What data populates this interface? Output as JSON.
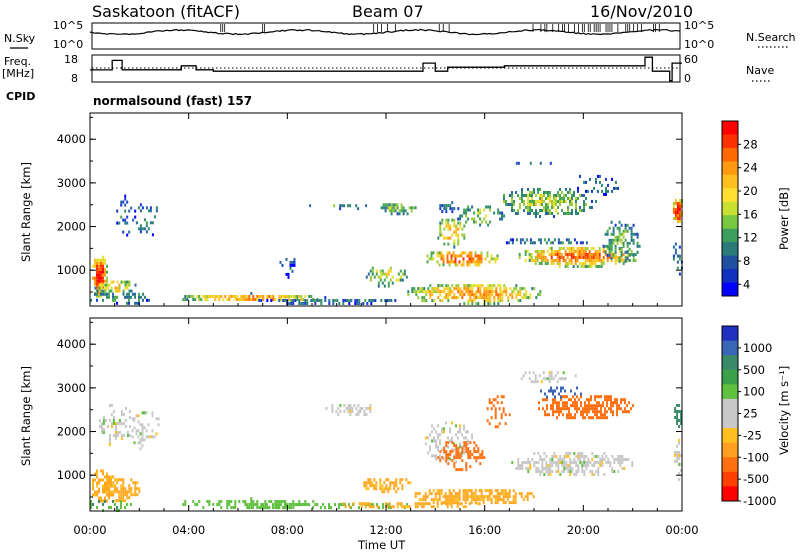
{
  "header": {
    "station": "Saskatoon (fitACF)",
    "beam": "Beam 07",
    "date": "16/Nov/2010"
  },
  "top_panels": {
    "nsky_label": "N.Sky",
    "nsky_ticks": [
      "10^5",
      "10^0"
    ],
    "nsearch_label": "N.Search",
    "nsearch_ticks": [
      "10^5",
      "10^0"
    ],
    "freq_label_1": "Freq.",
    "freq_label_2": "[MHz]",
    "freq_ticks": [
      "18",
      "8"
    ],
    "nave_label": "Nave",
    "nave_ticks": [
      "60",
      "0"
    ],
    "cpid_label": "CPID",
    "cpid_value": "normalsound (fast) 157"
  },
  "power_panel": {
    "ylabel": "Slant Range [km]",
    "yticks": [
      "4000",
      "3000",
      "2000",
      "1000"
    ],
    "colorbar_label": "Power [dB]",
    "colorbar_ticks": [
      "28",
      "24",
      "20",
      "16",
      "12",
      "8",
      "4"
    ],
    "colorbar_colors": [
      "#ff0000",
      "#ff3000",
      "#ff6a00",
      "#ff9a10",
      "#ffc020",
      "#ffe030",
      "#c8e030",
      "#7ac840",
      "#3e9e5e",
      "#2a7a7a",
      "#2050a0",
      "#1030c0",
      "#0000ff"
    ]
  },
  "velocity_panel": {
    "ylabel": "Slant Range [km]",
    "yticks": [
      "4000",
      "3000",
      "2000",
      "1000"
    ],
    "colorbar_label": "Velocity [m s⁻¹]",
    "colorbar_ticks": [
      "1000",
      "500",
      "100",
      "25",
      "-25",
      "-100",
      "-500",
      "-1000"
    ],
    "colorbar_colors": [
      "#2030c0",
      "#3a66b8",
      "#3a8a6a",
      "#3aa04a",
      "#60c040",
      "#c8c8c8",
      "#c8c8c8",
      "#ffc020",
      "#ffa020",
      "#ff7010",
      "#ff4000",
      "#ff0000"
    ]
  },
  "time_axis": {
    "xlabel": "Time UT",
    "ticks": [
      "00:00",
      "04:00",
      "08:00",
      "12:00",
      "16:00",
      "20:00",
      "00:00"
    ]
  },
  "chart_data": [
    {
      "type": "heatmap",
      "name": "power",
      "x_range_hours": [
        0,
        24
      ],
      "ylim": [
        180,
        4600
      ],
      "clim": [
        0,
        30
      ],
      "blobs": [
        {
          "t": 0.35,
          "r": 900,
          "dt": 0.35,
          "dr": 500,
          "v": 28,
          "dens": 0.95
        },
        {
          "t": 1.0,
          "r": 650,
          "dt": 0.9,
          "dr": 180,
          "v": 18,
          "dens": 0.7
        },
        {
          "t": 1.4,
          "r": 2300,
          "dt": 0.5,
          "dr": 500,
          "v": 8,
          "dens": 0.25
        },
        {
          "t": 2.3,
          "r": 2200,
          "dt": 0.6,
          "dr": 400,
          "v": 8,
          "dens": 0.25
        },
        {
          "t": 1.2,
          "r": 400,
          "dt": 1.4,
          "dr": 150,
          "v": 10,
          "dens": 0.45
        },
        {
          "t": 6.5,
          "r": 400,
          "dt": 3.0,
          "dr": 100,
          "v": 22,
          "dens": 0.85
        },
        {
          "t": 9.5,
          "r": 330,
          "dt": 3.0,
          "dr": 80,
          "v": 8,
          "dens": 0.7
        },
        {
          "t": 8.0,
          "r": 1100,
          "dt": 0.4,
          "dr": 250,
          "v": 6,
          "dens": 0.25
        },
        {
          "t": 12.0,
          "r": 900,
          "dt": 0.9,
          "dr": 250,
          "v": 16,
          "dens": 0.5
        },
        {
          "t": 10.0,
          "r": 2500,
          "dt": 1.2,
          "dr": 80,
          "v": 10,
          "dens": 0.35
        },
        {
          "t": 12.5,
          "r": 2450,
          "dt": 0.8,
          "dr": 150,
          "v": 14,
          "dens": 0.7
        },
        {
          "t": 15.5,
          "r": 500,
          "dt": 2.8,
          "dr": 250,
          "v": 22,
          "dens": 0.75
        },
        {
          "t": 15.0,
          "r": 1300,
          "dt": 1.6,
          "dr": 200,
          "v": 24,
          "dens": 0.75
        },
        {
          "t": 14.6,
          "r": 1900,
          "dt": 0.6,
          "dr": 350,
          "v": 20,
          "dens": 0.65
        },
        {
          "t": 15.8,
          "r": 2300,
          "dt": 1.0,
          "dr": 250,
          "v": 14,
          "dens": 0.5
        },
        {
          "t": 14.5,
          "r": 2500,
          "dt": 0.5,
          "dr": 150,
          "v": 8,
          "dens": 0.45
        },
        {
          "t": 18.5,
          "r": 2600,
          "dt": 2.0,
          "dr": 350,
          "v": 15,
          "dens": 0.65
        },
        {
          "t": 19.8,
          "r": 1350,
          "dt": 2.5,
          "dr": 250,
          "v": 24,
          "dens": 0.85
        },
        {
          "t": 21.5,
          "r": 1700,
          "dt": 0.8,
          "dr": 500,
          "v": 12,
          "dens": 0.5
        },
        {
          "t": 18.5,
          "r": 1700,
          "dt": 1.8,
          "dr": 100,
          "v": 8,
          "dens": 0.45
        },
        {
          "t": 18.0,
          "r": 3500,
          "dt": 0.9,
          "dr": 50,
          "v": 8,
          "dens": 0.45
        },
        {
          "t": 20.5,
          "r": 3000,
          "dt": 1.0,
          "dr": 250,
          "v": 8,
          "dens": 0.3
        },
        {
          "t": 23.8,
          "r": 2400,
          "dt": 0.25,
          "dr": 300,
          "v": 28,
          "dens": 0.95
        },
        {
          "t": 23.8,
          "r": 1300,
          "dt": 0.25,
          "dr": 400,
          "v": 8,
          "dens": 0.35
        }
      ]
    },
    {
      "type": "heatmap",
      "name": "velocity",
      "x_range_hours": [
        0,
        24
      ],
      "ylim": [
        180,
        4600
      ],
      "clim": [
        -1000,
        1000
      ],
      "blobs": [
        {
          "t": 0.5,
          "r": 800,
          "dt": 0.5,
          "dr": 400,
          "v": -120,
          "dens": 0.8
        },
        {
          "t": 1.3,
          "r": 700,
          "dt": 0.8,
          "dr": 300,
          "v": -120,
          "dens": 0.7
        },
        {
          "t": 1.0,
          "r": 2200,
          "dt": 0.8,
          "dr": 500,
          "v": 0,
          "dens": 0.35
        },
        {
          "t": 2.2,
          "r": 2100,
          "dt": 0.6,
          "dr": 500,
          "v": 0,
          "dens": 0.3
        },
        {
          "t": 0.8,
          "r": 350,
          "dt": 1.0,
          "dr": 150,
          "v": 80,
          "dens": 0.4
        },
        {
          "t": 6.5,
          "r": 380,
          "dt": 3.0,
          "dr": 120,
          "v": 60,
          "dens": 0.5
        },
        {
          "t": 9.5,
          "r": 330,
          "dt": 3.5,
          "dr": 100,
          "v": 60,
          "dens": 0.45
        },
        {
          "t": 12.0,
          "r": 820,
          "dt": 1.0,
          "dr": 180,
          "v": -120,
          "dens": 0.75
        },
        {
          "t": 15.5,
          "r": 550,
          "dt": 2.5,
          "dr": 200,
          "v": -120,
          "dens": 0.75
        },
        {
          "t": 13.0,
          "r": 350,
          "dt": 3.0,
          "dr": 100,
          "v": -120,
          "dens": 0.55
        },
        {
          "t": 10.5,
          "r": 2550,
          "dt": 1.2,
          "dr": 150,
          "v": 0,
          "dens": 0.45
        },
        {
          "t": 14.5,
          "r": 1800,
          "dt": 1.0,
          "dr": 500,
          "v": 0,
          "dens": 0.45
        },
        {
          "t": 15.0,
          "r": 1500,
          "dt": 1.0,
          "dr": 350,
          "v": -600,
          "dens": 0.55
        },
        {
          "t": 16.5,
          "r": 2500,
          "dt": 0.5,
          "dr": 400,
          "v": -600,
          "dens": 0.4
        },
        {
          "t": 20.0,
          "r": 2600,
          "dt": 2.0,
          "dr": 300,
          "v": -600,
          "dens": 0.75
        },
        {
          "t": 19.5,
          "r": 1300,
          "dt": 2.5,
          "dr": 300,
          "v": 0,
          "dens": 0.7
        },
        {
          "t": 18.5,
          "r": 3300,
          "dt": 1.2,
          "dr": 150,
          "v": 0,
          "dens": 0.4
        },
        {
          "t": 19.0,
          "r": 2950,
          "dt": 1.0,
          "dr": 150,
          "v": 400,
          "dens": 0.4
        },
        {
          "t": 23.8,
          "r": 2400,
          "dt": 0.2,
          "dr": 300,
          "v": 150,
          "dens": 0.85
        },
        {
          "t": 23.8,
          "r": 1400,
          "dt": 0.2,
          "dr": 500,
          "v": 0,
          "dens": 0.5
        }
      ]
    }
  ]
}
